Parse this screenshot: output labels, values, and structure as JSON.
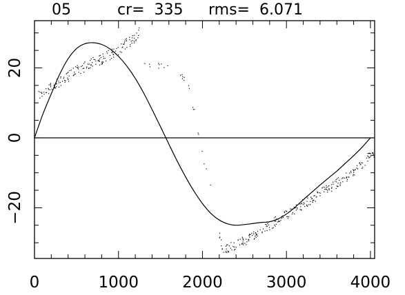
{
  "title": {
    "label": "05",
    "cr": "cr=  335",
    "rms": "rms=  6.071"
  },
  "chart_data": {
    "type": "scatter",
    "title": "05    cr=  335    rms=  6.071",
    "xlabel": "",
    "ylabel": "",
    "xlim": [
      0,
      4050
    ],
    "ylim": [
      -34.5,
      33.5
    ],
    "x_ticks": [
      0,
      1000,
      2000,
      3000,
      4000
    ],
    "y_ticks": [
      -20,
      0,
      20
    ],
    "x_tick_labels": [
      "0",
      "1000",
      "2000",
      "3000",
      "4000"
    ],
    "y_tick_labels": [
      "−20",
      "0",
      "20"
    ],
    "grid": false,
    "reference_line": {
      "y": 0
    },
    "model_curve": {
      "type": "line",
      "amplitude": 27.2,
      "period": 4000,
      "peak_x": 700,
      "trough_x": 2800,
      "x": [
        0,
        100,
        200,
        300,
        400,
        500,
        600,
        700,
        800,
        900,
        1000,
        1100,
        1200,
        1300,
        1400,
        1500,
        1600,
        1700,
        1800,
        1900,
        2000,
        2100,
        2200,
        2300,
        2400,
        2500,
        2600,
        2700,
        2800,
        2900,
        3000,
        3100,
        3200,
        3300,
        3400,
        3500,
        3600,
        3700,
        3800,
        3900,
        4000
      ],
      "y": [
        0,
        6.8,
        12.6,
        18.2,
        22.6,
        25.5,
        26.9,
        27.2,
        26.7,
        25.4,
        23.3,
        20.5,
        17.0,
        12.8,
        8.1,
        3.2,
        -1.8,
        -6.7,
        -11.2,
        -15.3,
        -18.8,
        -21.6,
        -23.5,
        -24.6,
        -25.0,
        -24.8,
        -24.5,
        -24.2,
        -24.0,
        -23.2,
        -21.8,
        -19.9,
        -17.7,
        -15.6,
        -13.5,
        -11.5,
        -9.5,
        -7.3,
        -5.1,
        -2.7,
        0
      ]
    },
    "observed_series": {
      "type": "scatter",
      "segments": [
        {
          "x": [
            50,
            100,
            200,
            300,
            400,
            500,
            600,
            700,
            800,
            900,
            1000,
            1100,
            1200,
            1250
          ],
          "y": [
            12.0,
            12.8,
            14.5,
            16.0,
            17.5,
            19.3,
            20.3,
            21.5,
            22.5,
            23.8,
            25.0,
            27.0,
            28.5,
            31.0
          ],
          "spread": 1.5,
          "per_step": 14
        },
        {
          "x": [
            1300,
            1600,
            1800,
            1850,
            1900,
            1950,
            2000
          ],
          "y": [
            21.0,
            20.5,
            17.0,
            13.0,
            8.0,
            2.0,
            -5.0
          ],
          "spread": 1.0,
          "per_step": 3
        },
        {
          "x": [
            2000,
            2100
          ],
          "y": [
            -5.0,
            -13.5
          ],
          "spread": 0.8,
          "per_step": 3
        },
        {
          "x": [
            2200,
            2250,
            2300,
            2400,
            2500,
            2600,
            2700,
            2800,
            2900,
            3000,
            3100,
            3200,
            3300,
            3400,
            3500,
            3600,
            3700,
            3800,
            3900,
            4000,
            4050
          ],
          "y": [
            -27.0,
            -33.5,
            -31.5,
            -30.5,
            -29.5,
            -28.0,
            -26.5,
            -25.0,
            -23.5,
            -22.0,
            -20.5,
            -19.0,
            -17.5,
            -16.0,
            -14.5,
            -13.0,
            -11.5,
            -9.5,
            -7.5,
            -5.0,
            -4.0
          ],
          "spread": 1.4,
          "per_step": 14
        }
      ]
    }
  }
}
